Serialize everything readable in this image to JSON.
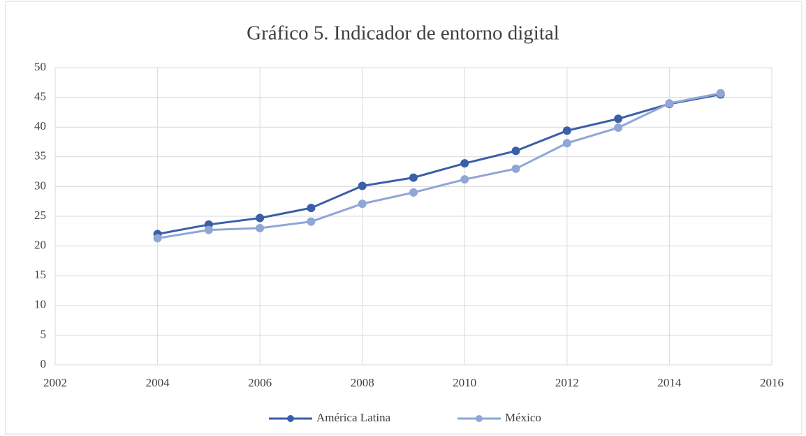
{
  "chart_data": {
    "type": "line",
    "title": "Gráfico 5. Indicador de entorno digital",
    "x": [
      2004,
      2005,
      2006,
      2007,
      2008,
      2009,
      2010,
      2011,
      2012,
      2013,
      2014,
      2015
    ],
    "series": [
      {
        "name": "América Latina",
        "color": "#3a5ea8",
        "values": [
          22,
          23.6,
          24.7,
          26.4,
          30.1,
          31.5,
          33.9,
          36,
          39.4,
          41.4,
          43.9,
          45.5
        ]
      },
      {
        "name": "México",
        "color": "#8fa6d6",
        "values": [
          21.3,
          22.7,
          23,
          24.1,
          27.1,
          29,
          31.2,
          33,
          37.3,
          39.9,
          44,
          45.7
        ]
      }
    ],
    "xlim": [
      2002,
      2016
    ],
    "xticks": [
      2002,
      2004,
      2006,
      2008,
      2010,
      2012,
      2014,
      2016
    ],
    "ylim": [
      0,
      50
    ],
    "yticks": [
      0,
      5,
      10,
      15,
      20,
      25,
      30,
      35,
      40,
      45,
      50
    ],
    "grid": true,
    "legend": "bottom"
  }
}
